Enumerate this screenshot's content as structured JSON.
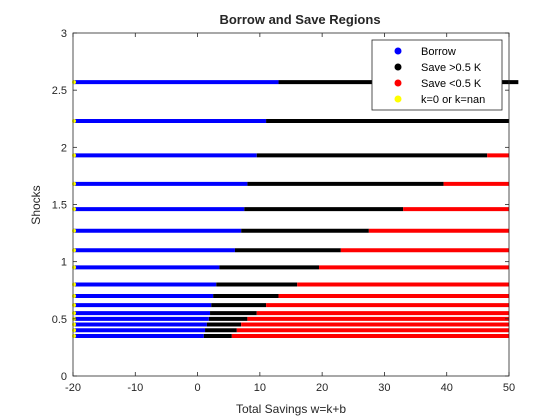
{
  "chart_data": {
    "type": "scatter",
    "title": "Borrow and Save Regions",
    "xlabel": "Total Savings w=k+b",
    "ylabel": "Shocks",
    "xlim": [
      -20,
      50
    ],
    "ylim": [
      0,
      3
    ],
    "xticks": [
      -20,
      -10,
      0,
      10,
      20,
      30,
      40,
      50
    ],
    "xtick_labels": [
      "-20",
      "-10",
      "0",
      "10",
      "20",
      "30",
      "40",
      "50"
    ],
    "yticks": [
      0,
      0.5,
      1,
      1.5,
      2,
      2.5,
      3
    ],
    "ytick_labels": [
      "0",
      "0.5",
      "1",
      "1.5",
      "2",
      "2.5",
      "3"
    ],
    "grid": false,
    "legend_position": "top-right",
    "legend": [
      {
        "label": "Borrow",
        "color": "#0000ff"
      },
      {
        "label": "Save >0.5 K",
        "color": "#000000"
      },
      {
        "label": "Save <0.5 K",
        "color": "#ff0000"
      },
      {
        "label": "k=0 or k=nan",
        "color": "#ffff00"
      }
    ],
    "rows": [
      {
        "shock": 0.35,
        "borrow_end": 1.0,
        "save_high_end": 5.5,
        "x_max": 50
      },
      {
        "shock": 0.4,
        "borrow_end": 1.2,
        "save_high_end": 6.3,
        "x_max": 50
      },
      {
        "shock": 0.45,
        "borrow_end": 1.5,
        "save_high_end": 7.0,
        "x_max": 50
      },
      {
        "shock": 0.5,
        "borrow_end": 1.8,
        "save_high_end": 8.0,
        "x_max": 50
      },
      {
        "shock": 0.55,
        "borrow_end": 2.0,
        "save_high_end": 9.5,
        "x_max": 50
      },
      {
        "shock": 0.62,
        "borrow_end": 2.2,
        "save_high_end": 11.0,
        "x_max": 50
      },
      {
        "shock": 0.7,
        "borrow_end": 2.5,
        "save_high_end": 13.0,
        "x_max": 50
      },
      {
        "shock": 0.8,
        "borrow_end": 3.0,
        "save_high_end": 16.0,
        "x_max": 50
      },
      {
        "shock": 0.95,
        "borrow_end": 3.5,
        "save_high_end": 19.5,
        "x_max": 50
      },
      {
        "shock": 1.1,
        "borrow_end": 6.0,
        "save_high_end": 23.0,
        "x_max": 50
      },
      {
        "shock": 1.27,
        "borrow_end": 7.0,
        "save_high_end": 27.5,
        "x_max": 50
      },
      {
        "shock": 1.46,
        "borrow_end": 7.5,
        "save_high_end": 33.0,
        "x_max": 50
      },
      {
        "shock": 1.68,
        "borrow_end": 8.0,
        "save_high_end": 39.5,
        "x_max": 50
      },
      {
        "shock": 1.93,
        "borrow_end": 9.5,
        "save_high_end": 46.5,
        "x_max": 50
      },
      {
        "shock": 2.23,
        "borrow_end": 11.0,
        "save_high_end": 50,
        "x_max": 50
      },
      {
        "shock": 2.57,
        "borrow_end": 13.0,
        "save_high_end": 51.5,
        "x_max": 51.5
      }
    ]
  }
}
